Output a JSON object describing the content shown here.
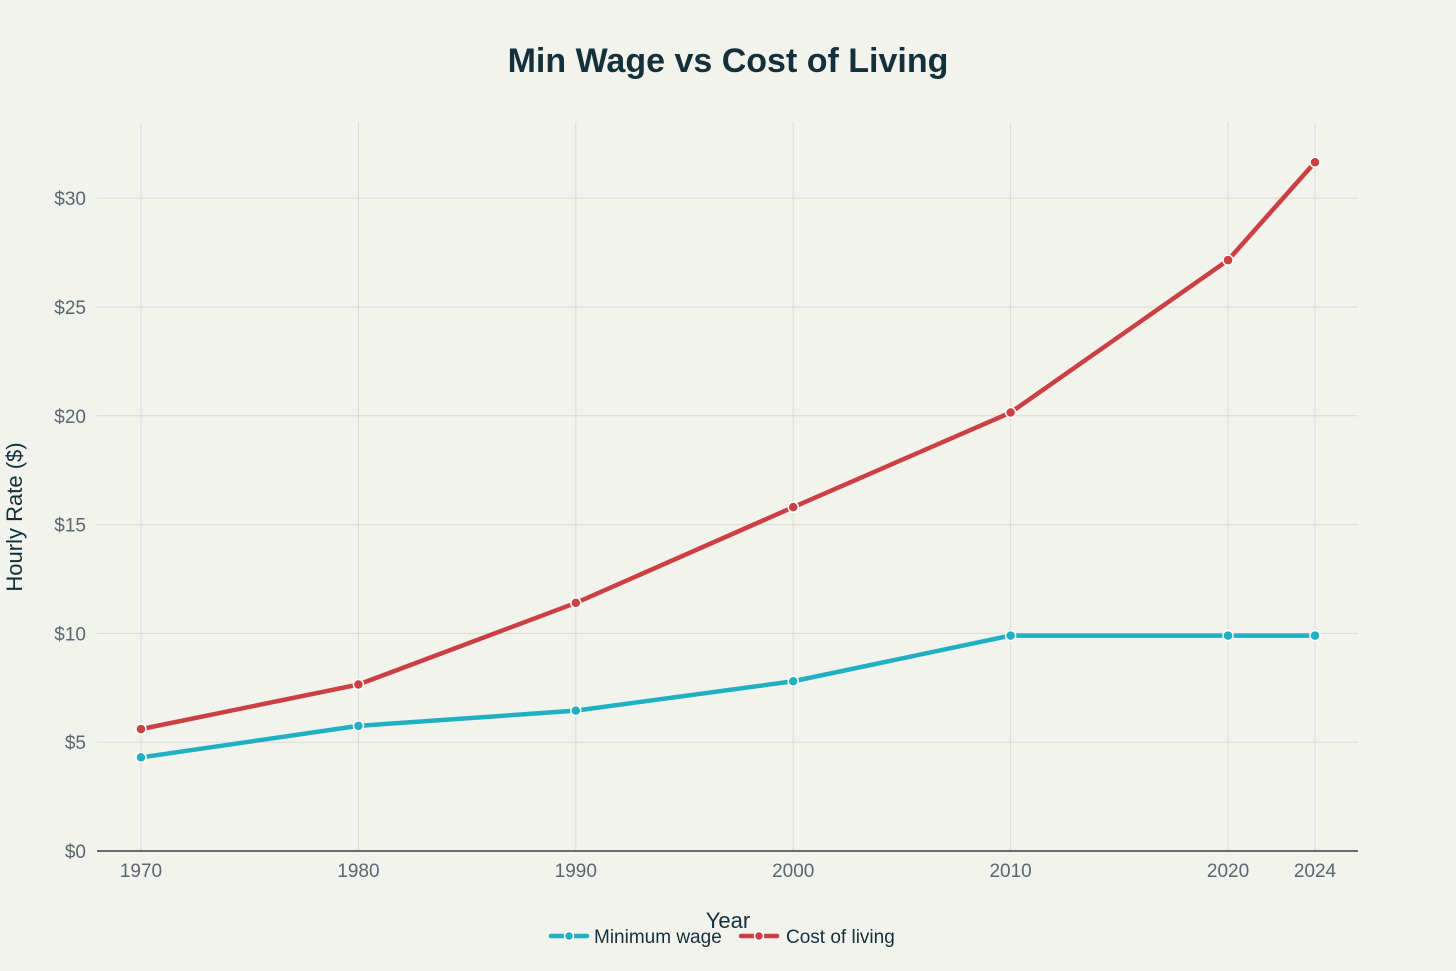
{
  "chart_data": {
    "type": "line",
    "title": "Min Wage vs Cost of Living",
    "xlabel": "Year",
    "ylabel": "Hourly Rate ($)",
    "x": [
      1970,
      1980,
      1990,
      2000,
      2010,
      2020,
      2024
    ],
    "x_tick_labels": [
      "1970",
      "1980",
      "1990",
      "2000",
      "2010",
      "2020",
      "2024"
    ],
    "xlim": [
      1970,
      2024
    ],
    "ylim": [
      0,
      33.5
    ],
    "y_ticks": [
      0,
      5,
      10,
      15,
      20,
      25,
      30
    ],
    "y_tick_labels": [
      "$0",
      "$5",
      "$10",
      "$15",
      "$20",
      "$25",
      "$30"
    ],
    "grid": true,
    "legend_position": "bottom-center",
    "series": [
      {
        "name": "Minimum wage",
        "color": "#1fb0c2",
        "values": [
          4.3,
          5.75,
          6.45,
          7.8,
          9.9,
          9.9,
          9.9
        ]
      },
      {
        "name": "Cost of living",
        "color": "#cc3f42",
        "values": [
          5.6,
          7.65,
          11.4,
          15.8,
          20.15,
          27.15,
          31.65
        ]
      }
    ]
  }
}
